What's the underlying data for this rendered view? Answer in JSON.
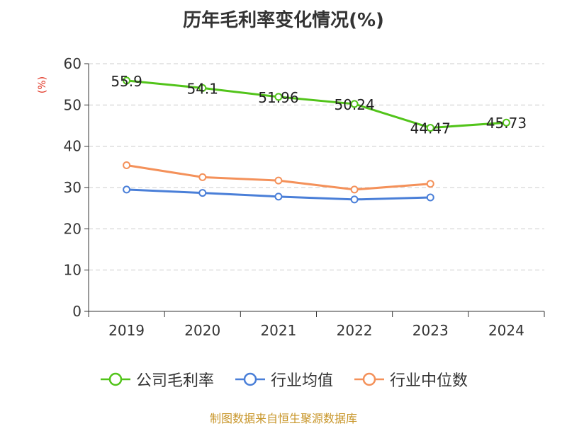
{
  "chart_data": {
    "type": "line",
    "title": "历年毛利率变化情况(%)",
    "y_unit_label": "(%)",
    "categories": [
      "2019",
      "2020",
      "2021",
      "2022",
      "2023",
      "2024"
    ],
    "ylim": [
      0,
      60
    ],
    "yticks": [
      "0",
      "10",
      "20",
      "30",
      "40",
      "50",
      "60"
    ],
    "grid": true,
    "legend_position": "bottom",
    "series": [
      {
        "name": "公司毛利率",
        "color": "#52c41a",
        "values": [
          55.9,
          54.1,
          51.96,
          50.24,
          44.47,
          45.73
        ],
        "labels": [
          "55.9",
          "54.1",
          "51.96",
          "50.24",
          "44.47",
          "45.73"
        ]
      },
      {
        "name": "行业均值",
        "color": "#4a7fd8",
        "values": [
          29.5,
          28.7,
          27.8,
          27.1,
          27.6,
          null
        ]
      },
      {
        "name": "行业中位数",
        "color": "#f4915a",
        "values": [
          35.4,
          32.5,
          31.7,
          29.5,
          30.9,
          null
        ]
      }
    ]
  },
  "source_note": "制图数据来自恒生聚源数据库"
}
